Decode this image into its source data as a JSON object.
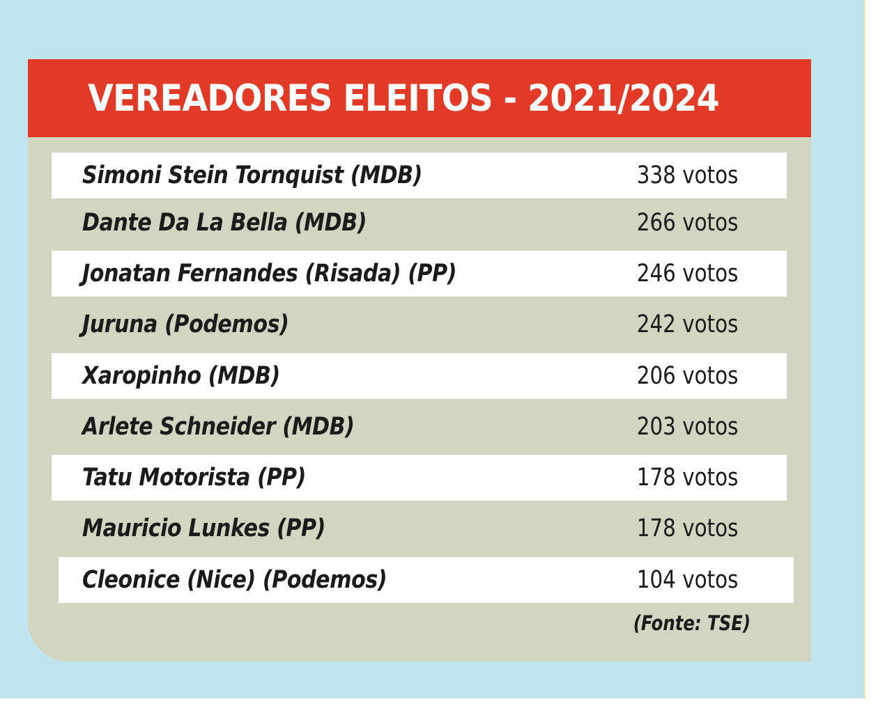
{
  "table": {
    "title": "VEREADORES ELEITOS - 2021/2024",
    "rows": [
      {
        "name": "Simoni Stein Tornquist (MDB)",
        "votes": "338 votos"
      },
      {
        "name": "Dante Da La Bella (MDB)",
        "votes": "266 votos"
      },
      {
        "name": "Jonatan Fernandes (Risada) (PP)",
        "votes": "246 votos"
      },
      {
        "name": "Juruna (Podemos)",
        "votes": "242 votos"
      },
      {
        "name": "Xaropinho (MDB)",
        "votes": "206 votos"
      },
      {
        "name": "Arlete Schneider (MDB)",
        "votes": "203 votos"
      },
      {
        "name": "Tatu Motorista (PP)",
        "votes": "178 votos"
      },
      {
        "name": "Mauricio Lunkes (PP)",
        "votes": "178 votos"
      },
      {
        "name": "Cleonice (Nice) (Podemos)",
        "votes": "104 votos"
      }
    ],
    "source": "(Fonte: TSE)"
  },
  "colors": {
    "page_background": "#c1e5ef",
    "card_background": "#d2d5bf",
    "header_background": "#e23a27",
    "row_highlight": "#ffffff",
    "text": "#1b1b1b"
  }
}
